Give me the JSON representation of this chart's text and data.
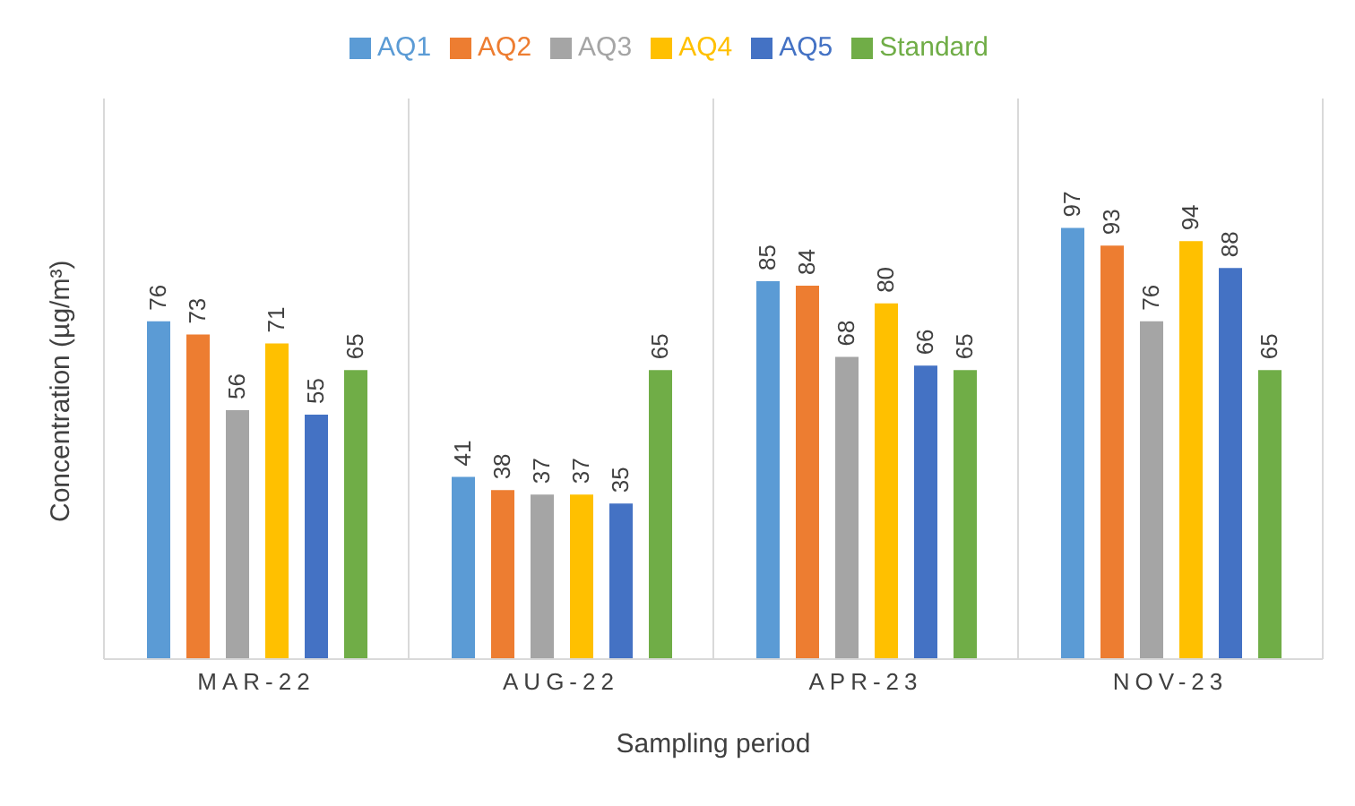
{
  "chart_data": {
    "type": "bar",
    "xlabel": "Sampling period",
    "ylabel": "Concentration (µg/m³)",
    "categories": [
      "MAR-22",
      "AUG-22",
      "APR-23",
      "NOV-23"
    ],
    "series": [
      {
        "name": "AQ1",
        "color": "#5b9bd5",
        "values": [
          76,
          41,
          85,
          97
        ]
      },
      {
        "name": "AQ2",
        "color": "#ed7d31",
        "values": [
          73,
          38,
          84,
          93
        ]
      },
      {
        "name": "AQ3",
        "color": "#a5a5a5",
        "values": [
          56,
          37,
          68,
          76
        ]
      },
      {
        "name": "AQ4",
        "color": "#ffc000",
        "values": [
          71,
          37,
          80,
          94
        ]
      },
      {
        "name": "AQ5",
        "color": "#4472c4",
        "values": [
          55,
          35,
          66,
          88
        ]
      },
      {
        "name": "Standard",
        "color": "#70ad47",
        "values": [
          65,
          65,
          65,
          65
        ]
      }
    ],
    "data_labels": true,
    "grid": "x",
    "legend": "top"
  }
}
